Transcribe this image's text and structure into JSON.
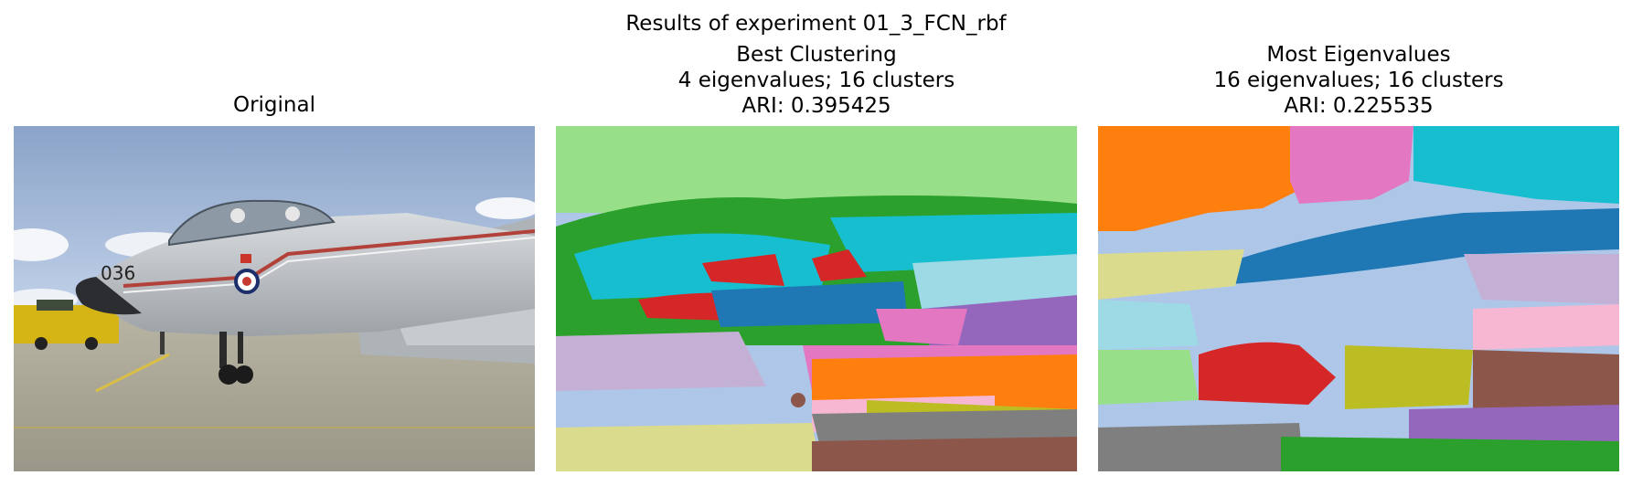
{
  "figure": {
    "suptitle": "Results of experiment 01_3_FCN_rbf"
  },
  "panels": [
    {
      "title_lines": [
        "Original"
      ],
      "image": "photo of a grey fighter jet with red stripes and number 036 on an airfield under blue sky",
      "aircraft_marking": "036"
    },
    {
      "title_lines": [
        "Best Clustering",
        "4 eigenvalues; 16 clusters",
        "ARI: 0.395425"
      ],
      "image": "segmentation map colored by 16 clusters"
    },
    {
      "title_lines": [
        "Most Eigenvalues",
        "16 eigenvalues; 16 clusters",
        "ARI: 0.225535"
      ],
      "image": "segmentation map colored by 16 clusters"
    }
  ],
  "palette": {
    "blue": "#1f77b4",
    "orange": "#ff7f0e",
    "green": "#2ca02c",
    "red": "#d62728",
    "purple": "#9467bd",
    "brown": "#8c564b",
    "pink": "#e377c2",
    "gray": "#7f7f7f",
    "olive": "#bcbd22",
    "cyan": "#17becf",
    "lightblue": "#aec7e8",
    "lightgreen": "#98df8a",
    "lightpink": "#f7b6d2",
    "lightpurple": "#c5b0d5",
    "khaki": "#dbdb8d",
    "lightcyan": "#9edae5"
  }
}
